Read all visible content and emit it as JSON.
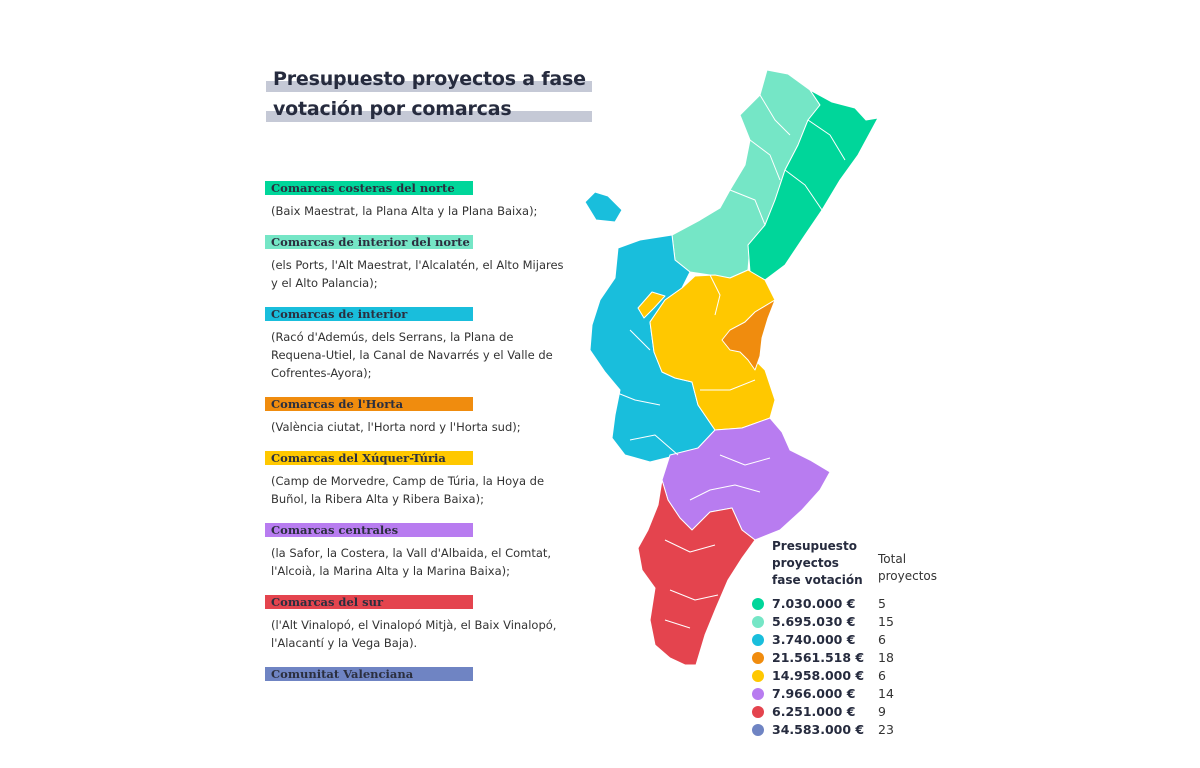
{
  "title": {
    "line1": "Presupuesto proyectos a fase",
    "line2": "votación por comarcas"
  },
  "groups": [
    {
      "name": "Comarcas costeras del norte",
      "desc": "(Baix Maestrat, la Plana Alta y la Plana Baixa);",
      "color": "#00d69a"
    },
    {
      "name": "Comarcas de interior del norte",
      "desc": "(els Ports, l'Alt Maestrat, l'Alcalatén, el Alto Mijares y el Alto Palancia);",
      "color": "#75e6c6"
    },
    {
      "name": "Comarcas de interior",
      "desc": "(Racó d'Ademús, dels Serrans, la Plana de Requena-Utiel, la Canal de Navarrés y el Valle de Cofrentes-Ayora);",
      "color": "#19bedc"
    },
    {
      "name": "Comarcas de l'Horta",
      "desc": "(València ciutat, l'Horta nord y l'Horta sud);",
      "color": "#f08c0e"
    },
    {
      "name": " Comarcas del Xúquer-Túria",
      "desc": "(Camp de Morvedre, Camp de Túria, la Hoya de Buñol, la Ribera Alta y Ribera Baixa);",
      "color": "#ffc800"
    },
    {
      "name": "Comarcas centrales",
      "desc": "(la Safor, la Costera, la Vall d'Albaida, el Comtat, l'Alcoià, la Marina Alta y la Marina Baixa);",
      "color": "#b87cf0"
    },
    {
      "name": "Comarcas del sur",
      "desc": "(l'Alt Vinalopó, el Vinalopó Mitjà, el Baix Vinalopó, l'Alacantí y la Vega Baja).",
      "color": "#e4444e"
    },
    {
      "name": "Comunitat Valenciana",
      "desc": "",
      "color": "#6f84c3"
    }
  ],
  "summary": {
    "budget_header": [
      "Presupuesto",
      "proyectos",
      "fase votación"
    ],
    "count_header": [
      "Total",
      "proyectos"
    ],
    "rows": [
      {
        "amount": "7.030.000 €",
        "count": "5",
        "color": "#00d69a"
      },
      {
        "amount": "5.695.030 €",
        "count": "15",
        "color": "#75e6c6"
      },
      {
        "amount": "3.740.000 €",
        "count": "6",
        "color": "#19bedc"
      },
      {
        "amount": "21.561.518 €",
        "count": "18",
        "color": "#f08c0e"
      },
      {
        "amount": "14.958.000 €",
        "count": "6",
        "color": "#ffc800"
      },
      {
        "amount": "7.966.000 €",
        "count": "14",
        "color": "#b87cf0"
      },
      {
        "amount": "6.251.000 €",
        "count": "9",
        "color": "#e4444e"
      },
      {
        "amount": "34.583.000 €",
        "count": "23",
        "color": "#6f84c3"
      }
    ]
  }
}
